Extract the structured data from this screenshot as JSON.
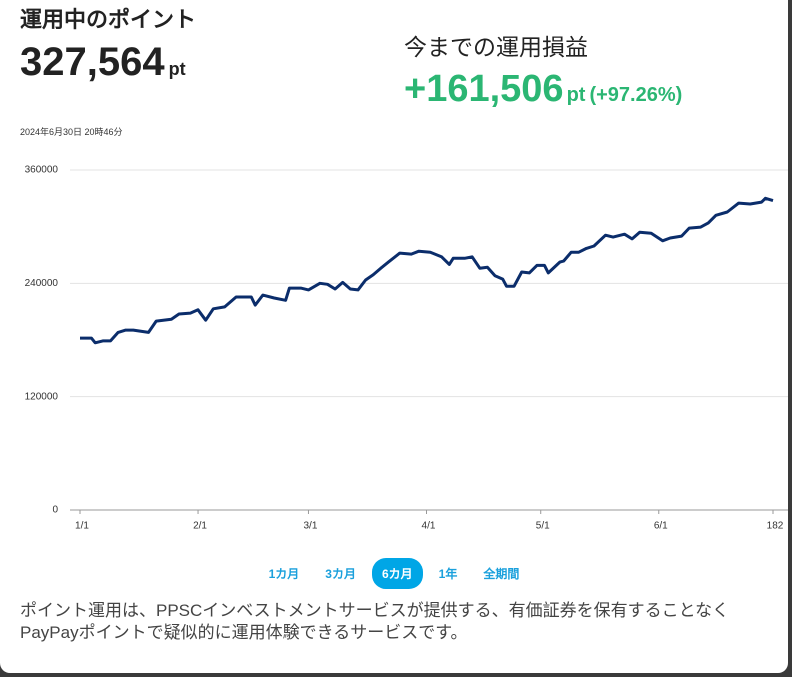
{
  "header": {
    "held_label": "運用中のポイント",
    "held_value": "327,564",
    "held_unit": "pt",
    "gain_label": "今までの運用損益",
    "gain_value": "+161,506",
    "gain_unit": "pt",
    "gain_percent": "(+97.26%)",
    "timestamp": "2024年6月30日 20時46分"
  },
  "chart_data": {
    "type": "line",
    "x": [
      0,
      3,
      4,
      6,
      8,
      10,
      12,
      14,
      18,
      20,
      24,
      26,
      29,
      31,
      33,
      35,
      38,
      41,
      45,
      46,
      48,
      51,
      54,
      55,
      58,
      60,
      63,
      65,
      67,
      69,
      71,
      73,
      75,
      77,
      79,
      81,
      84,
      87,
      89,
      92,
      95,
      97,
      98,
      101,
      103,
      105,
      107,
      109,
      111,
      112,
      114,
      116,
      118,
      120,
      122,
      123,
      126,
      127,
      129,
      131,
      133,
      135,
      138,
      140,
      143,
      145,
      147,
      150,
      153,
      155,
      158,
      160,
      163,
      165,
      167,
      170,
      173,
      176,
      179,
      180,
      182
    ],
    "series": [
      {
        "color": "#0b2d6b",
        "values": [
          182000,
          182000,
          177000,
          179000,
          179000,
          188000,
          190500,
          190500,
          188000,
          200000,
          202000,
          207500,
          208500,
          212000,
          201000,
          213000,
          215000,
          225500,
          225500,
          217000,
          227500,
          224500,
          222000,
          235000,
          235000,
          233000,
          240000,
          239000,
          234000,
          241000,
          234000,
          233000,
          243500,
          249000,
          256000,
          262500,
          272000,
          271000,
          274000,
          273000,
          268000,
          260000,
          266500,
          266500,
          268000,
          256000,
          257000,
          248000,
          244500,
          237000,
          237000,
          252000,
          251000,
          259000,
          259000,
          251000,
          262500,
          263500,
          273000,
          273000,
          277000,
          279500,
          291000,
          289000,
          292000,
          287000,
          294000,
          293000,
          285000,
          288000,
          290000,
          298500,
          299500,
          304000,
          312000,
          315500,
          325000,
          324000,
          326000,
          330000,
          327564
        ]
      }
    ],
    "xlim": [
      0,
      182
    ],
    "xticks": [
      {
        "value": 0,
        "label": "1/1"
      },
      {
        "value": 31,
        "label": "2/1"
      },
      {
        "value": 60,
        "label": "3/1"
      },
      {
        "value": 91,
        "label": "4/1"
      },
      {
        "value": 121,
        "label": "5/1"
      },
      {
        "value": 152,
        "label": "6/1"
      },
      182
    ],
    "ylim": [
      0,
      360000
    ],
    "yticks": [
      0,
      120000,
      240000,
      360000
    ],
    "grid": true
  },
  "tabs": [
    "1カ月",
    "3カ月",
    "6カ月",
    "1年",
    "全期間"
  ],
  "active_tab": 2,
  "note": "ポイント運用は、PPSCインベストメントサービスが提供する、有価証券を保有することなくPayPayポイントで疑似的に運用体験できるサービスです。"
}
